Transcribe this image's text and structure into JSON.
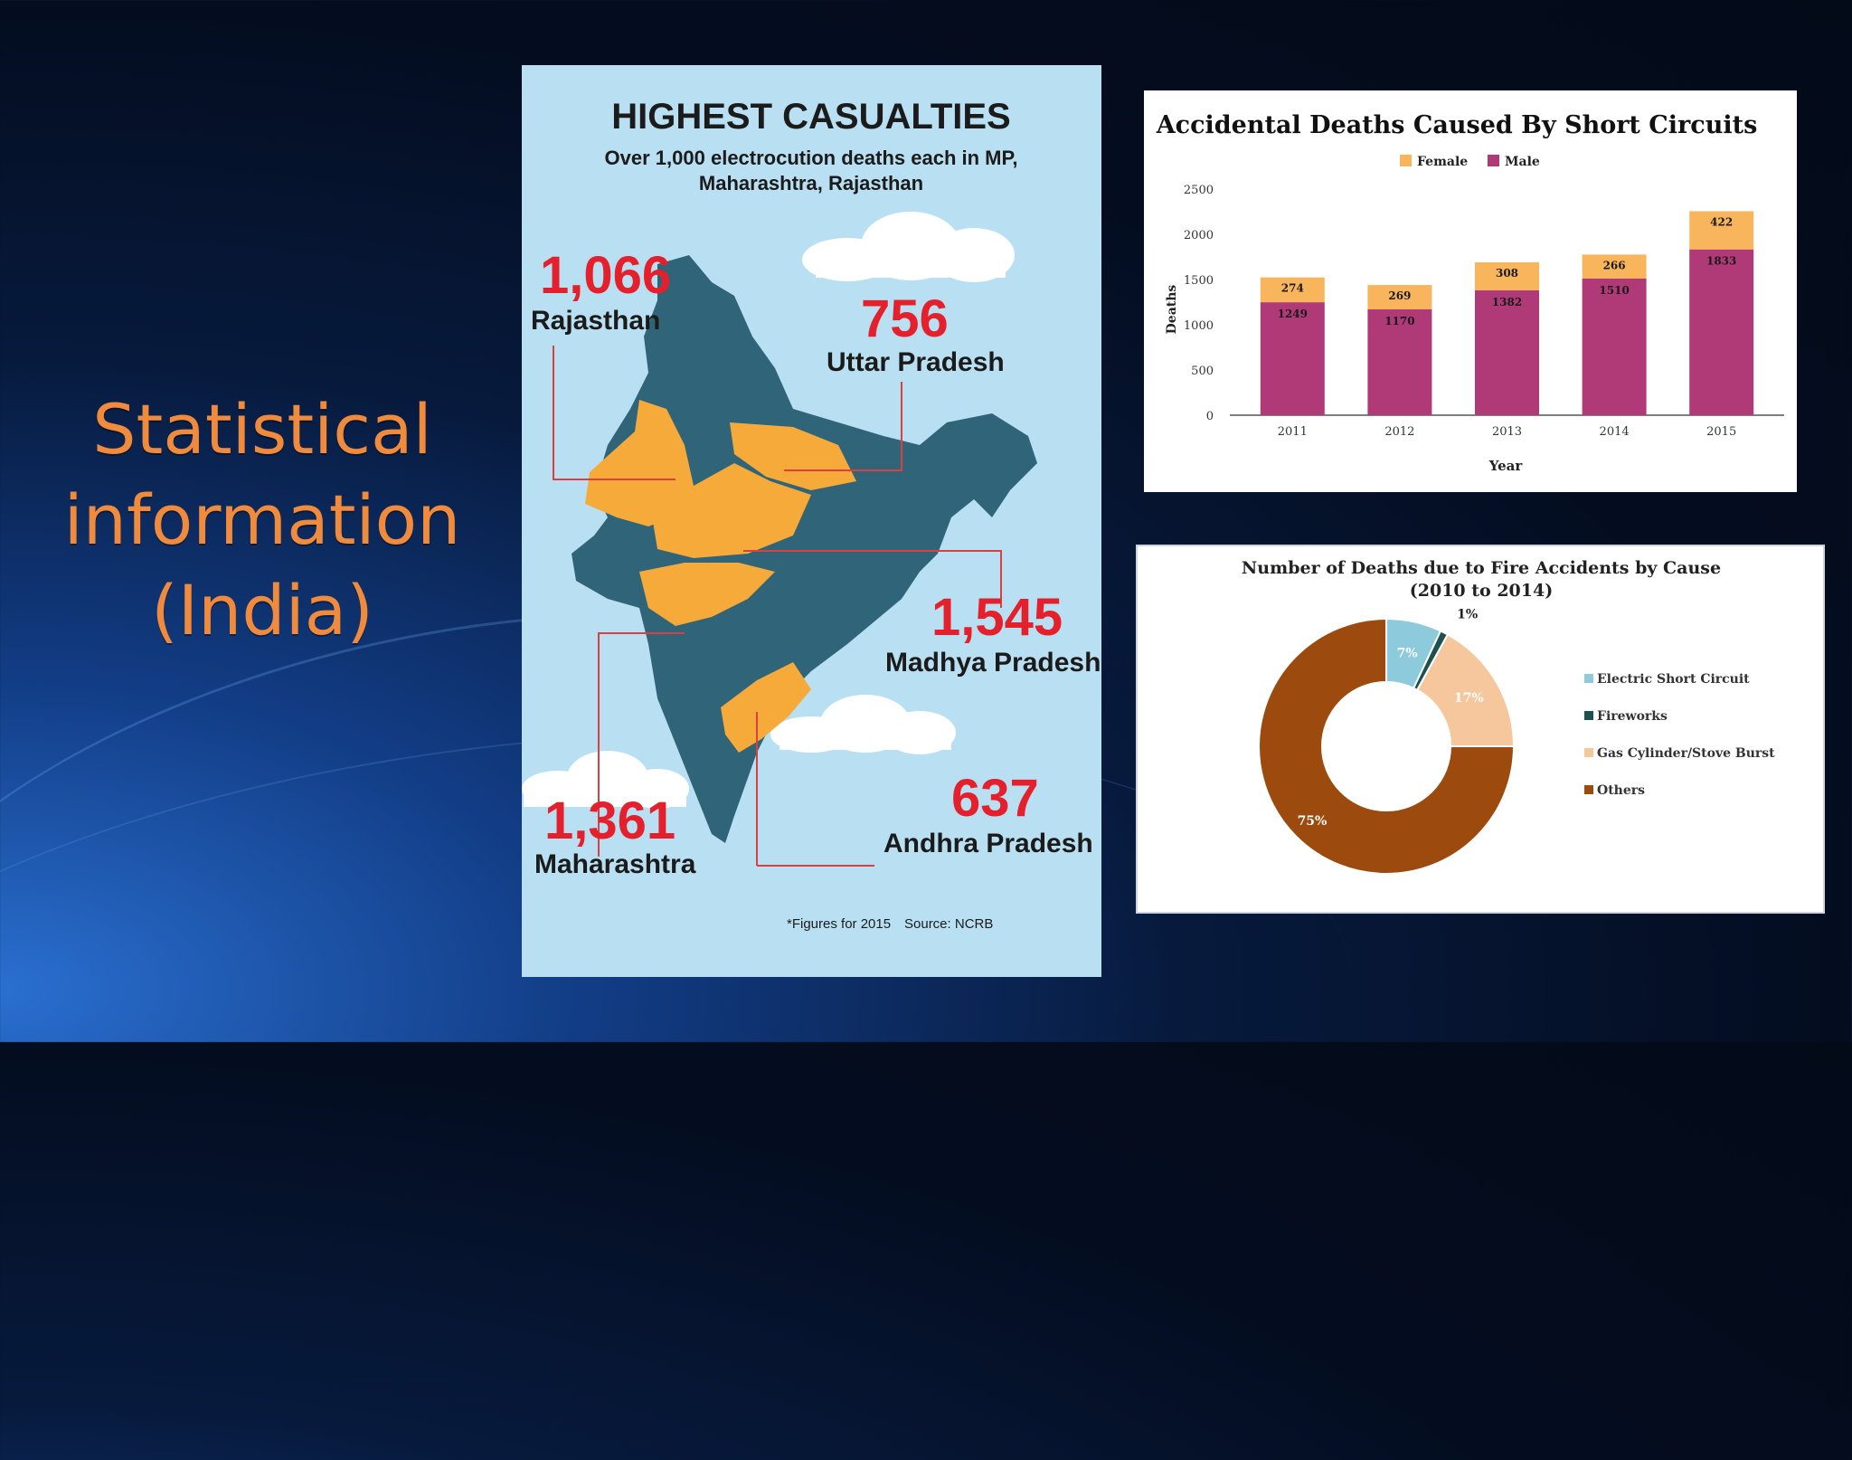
{
  "slide": {
    "title_lines": [
      "Statistical",
      "information",
      "(India)"
    ]
  },
  "map_infographic": {
    "heading": "HIGHEST CASUALTIES",
    "subheading_line1": "Over 1,000 electrocution deaths each in MP,",
    "subheading_line2": "Maharashtra, Rajasthan",
    "states": [
      {
        "name": "Rajasthan",
        "value": "1,066"
      },
      {
        "name": "Uttar Pradesh",
        "value": "756"
      },
      {
        "name": "Madhya Pradesh",
        "value": "1,545"
      },
      {
        "name": "Maharashtra",
        "value": "1,361"
      },
      {
        "name": "Andhra Pradesh",
        "value": "637"
      }
    ],
    "footnote": "*Figures for 2015",
    "source": "Source: NCRB",
    "colors": {
      "highlight": "#f6aa3a",
      "land": "#2f6479",
      "sea": "#b9e0f2",
      "number": "#e4202c"
    }
  },
  "chart_data": [
    {
      "type": "bar",
      "stacked": true,
      "title": "Accidental Deaths Caused By Short Circuits",
      "xlabel": "Year",
      "ylabel": "Deaths",
      "categories": [
        "2011",
        "2012",
        "2013",
        "2014",
        "2015"
      ],
      "series": [
        {
          "name": "Male",
          "color": "#b03a78",
          "values": [
            1249,
            1170,
            1382,
            1510,
            1833
          ]
        },
        {
          "name": "Female",
          "color": "#f9b55c",
          "values": [
            274,
            269,
            308,
            266,
            422
          ]
        }
      ],
      "legend": [
        "Female",
        "Male"
      ],
      "ylim": [
        0,
        2500
      ],
      "yticks": [
        0,
        500,
        1000,
        1500,
        2000,
        2500
      ],
      "legend_position": "top-center"
    },
    {
      "type": "pie",
      "donut": true,
      "title_line1": "Number of Deaths due to Fire Accidents by Cause",
      "title_line2": "(2010 to 2014)",
      "labels": [
        "Electric Short Circuit",
        "Fireworks",
        "Gas Cylinder/Stove Burst",
        "Others"
      ],
      "values": [
        7,
        1,
        17,
        75
      ],
      "value_labels": [
        "7%",
        "1%",
        "17%",
        "75%"
      ],
      "colors": [
        "#8dcbdc",
        "#1f5050",
        "#f6c79c",
        "#9c4a0e"
      ],
      "legend_position": "right"
    }
  ]
}
